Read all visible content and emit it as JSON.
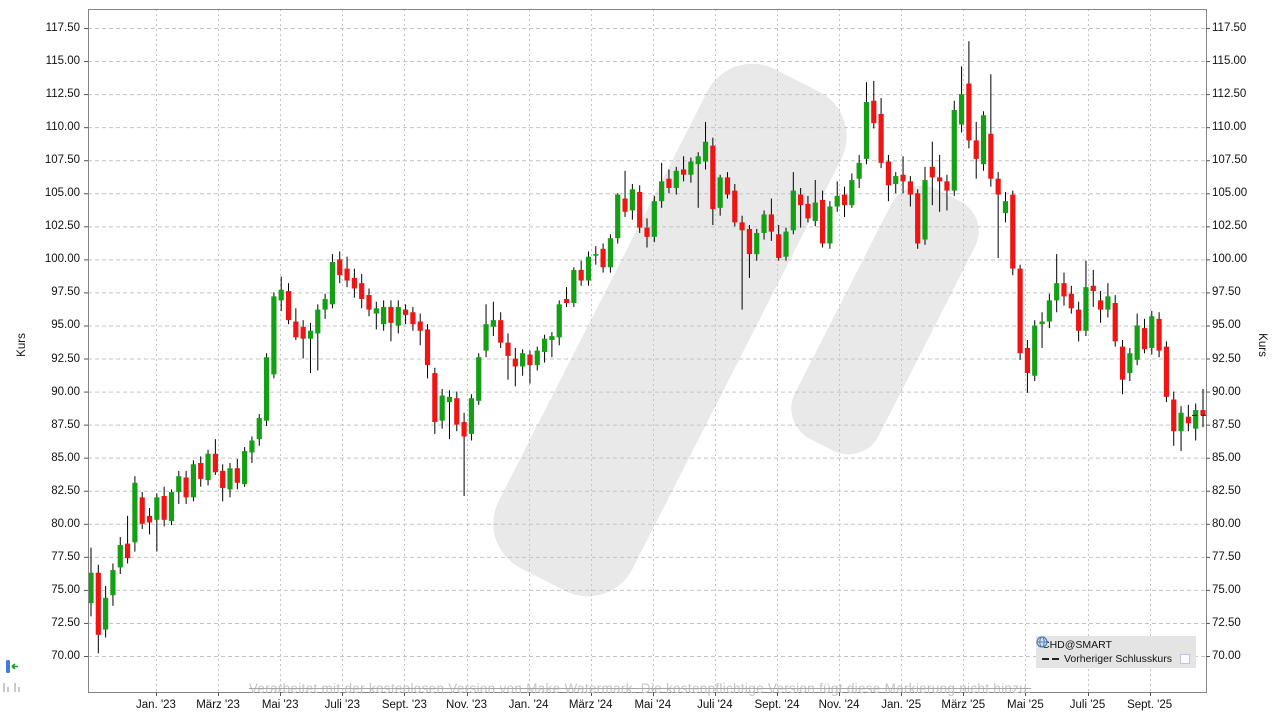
{
  "axes": {
    "y_left_title": "Kurs",
    "y_right_title": "Kurs",
    "y_ticks": [
      70.0,
      72.5,
      75.0,
      77.5,
      80.0,
      82.5,
      85.0,
      87.5,
      90.0,
      92.5,
      95.0,
      97.5,
      100.0,
      102.5,
      105.0,
      107.5,
      110.0,
      112.5,
      115.0,
      117.5
    ],
    "x_tick_labels": [
      "Jan. '23",
      "März '23",
      "Mai '23",
      "Juli '23",
      "Sept. '23",
      "Nov. '23",
      "Jan. '24",
      "März '24",
      "Mai '24",
      "Juli '24",
      "Sept. '24",
      "Nov. '24",
      "Jan. '25",
      "März '25",
      "Mai '25",
      "Juli '25",
      "Sept. '25"
    ]
  },
  "legend": {
    "title": "CHD@SMART",
    "title_icon": "globe-icon",
    "items": [
      {
        "label": "Vorheriger Schlusskurs",
        "marker": "dashed-line"
      }
    ]
  },
  "watermark": {
    "text": "Verarbeitet mit der kostenlosen Version von Make Watermark. Die kostenpflichtige Version fügt diese Markierung nicht hinzu.",
    "shape_color": "#e9e9e9"
  },
  "colors": {
    "up": "#14a014",
    "down": "#ef1515",
    "wick": "#000000",
    "grid": "#c4c4c4",
    "frame": "#858585"
  },
  "chart_data": {
    "type": "candlestick",
    "series_name": "CHD@SMART",
    "interval": "weekly",
    "x_range": [
      "Nov. '22",
      "Okt. '25"
    ],
    "xlabel": "",
    "ylabel": "Kurs",
    "ylim": [
      67.3,
      118.9
    ],
    "grid": true,
    "legend_position": "bottom-right",
    "ohlc_columns": [
      "open",
      "high",
      "low",
      "close"
    ],
    "ohlc": [
      [
        74.0,
        78.2,
        73.0,
        76.3
      ],
      [
        76.3,
        76.9,
        70.2,
        71.6
      ],
      [
        72.0,
        75.3,
        71.4,
        74.4
      ],
      [
        74.6,
        77.0,
        73.8,
        76.5
      ],
      [
        76.7,
        79.0,
        76.2,
        78.4
      ],
      [
        78.5,
        80.6,
        77.0,
        77.4
      ],
      [
        78.6,
        83.6,
        77.9,
        83.1
      ],
      [
        82.0,
        82.4,
        79.6,
        80.0
      ],
      [
        80.6,
        81.2,
        79.2,
        80.1
      ],
      [
        80.3,
        82.3,
        77.9,
        82.0
      ],
      [
        82.1,
        82.8,
        79.8,
        80.3
      ],
      [
        80.2,
        82.6,
        79.9,
        82.4
      ],
      [
        82.4,
        84.0,
        81.5,
        83.6
      ],
      [
        83.5,
        84.0,
        81.5,
        82.0
      ],
      [
        82.0,
        84.8,
        81.7,
        84.5
      ],
      [
        84.6,
        85.1,
        82.8,
        83.4
      ],
      [
        83.3,
        85.6,
        82.9,
        85.3
      ],
      [
        85.3,
        86.4,
        83.7,
        83.9
      ],
      [
        84.0,
        84.5,
        81.7,
        82.7
      ],
      [
        82.6,
        84.6,
        82.0,
        84.2
      ],
      [
        84.2,
        84.9,
        82.6,
        83.1
      ],
      [
        83.0,
        85.8,
        82.8,
        85.5
      ],
      [
        85.4,
        86.6,
        84.6,
        86.3
      ],
      [
        86.4,
        88.3,
        85.9,
        88.0
      ],
      [
        87.8,
        92.9,
        87.4,
        92.6
      ],
      [
        91.3,
        97.5,
        91.0,
        97.2
      ],
      [
        96.9,
        98.7,
        96.1,
        97.7
      ],
      [
        97.6,
        98.2,
        95.1,
        95.4
      ],
      [
        95.3,
        96.3,
        93.9,
        94.1
      ],
      [
        94.9,
        95.4,
        92.5,
        94.0
      ],
      [
        94.0,
        95.2,
        91.4,
        94.6
      ],
      [
        94.4,
        96.6,
        91.6,
        96.2
      ],
      [
        96.2,
        97.4,
        95.5,
        97.0
      ],
      [
        96.6,
        100.4,
        96.3,
        99.8
      ],
      [
        100.0,
        100.6,
        98.2,
        98.8
      ],
      [
        99.3,
        100.2,
        97.9,
        98.4
      ],
      [
        98.6,
        99.3,
        97.1,
        97.8
      ],
      [
        98.2,
        98.9,
        96.3,
        97.0
      ],
      [
        97.3,
        97.8,
        95.7,
        96.2
      ],
      [
        95.9,
        96.8,
        94.7,
        96.3
      ],
      [
        95.1,
        96.9,
        94.6,
        96.4
      ],
      [
        96.4,
        96.9,
        93.8,
        95.2
      ],
      [
        95.0,
        96.9,
        94.4,
        96.4
      ],
      [
        96.2,
        96.6,
        95.1,
        95.8
      ],
      [
        96.0,
        96.4,
        94.6,
        95.1
      ],
      [
        95.3,
        95.9,
        93.5,
        94.6
      ],
      [
        94.7,
        95.1,
        91.0,
        92.0
      ],
      [
        91.4,
        91.8,
        86.8,
        87.7
      ],
      [
        87.8,
        90.2,
        87.2,
        89.7
      ],
      [
        89.2,
        90.1,
        86.4,
        89.6
      ],
      [
        89.5,
        90.0,
        87.0,
        87.5
      ],
      [
        87.7,
        88.4,
        82.1,
        86.6
      ],
      [
        86.8,
        89.8,
        86.3,
        89.5
      ],
      [
        89.3,
        92.9,
        89.0,
        92.6
      ],
      [
        93.1,
        96.6,
        92.6,
        95.1
      ],
      [
        94.9,
        96.8,
        94.2,
        95.4
      ],
      [
        95.4,
        96.0,
        93.3,
        93.7
      ],
      [
        93.7,
        94.4,
        90.9,
        92.7
      ],
      [
        92.5,
        93.3,
        90.4,
        91.9
      ],
      [
        91.9,
        93.2,
        91.2,
        92.9
      ],
      [
        92.8,
        93.1,
        90.6,
        92.0
      ],
      [
        92.0,
        93.4,
        91.6,
        93.1
      ],
      [
        93.0,
        94.3,
        92.2,
        94.0
      ],
      [
        93.9,
        94.5,
        92.6,
        94.2
      ],
      [
        94.1,
        96.9,
        93.5,
        96.6
      ],
      [
        97.0,
        97.9,
        96.4,
        96.7
      ],
      [
        96.7,
        99.4,
        96.4,
        99.2
      ],
      [
        99.2,
        99.9,
        98.0,
        98.4
      ],
      [
        98.4,
        100.6,
        98.0,
        100.2
      ],
      [
        100.3,
        101.0,
        99.6,
        100.4
      ],
      [
        100.8,
        101.2,
        99.0,
        99.4
      ],
      [
        99.4,
        101.9,
        99.0,
        101.6
      ],
      [
        101.6,
        105.0,
        101.2,
        104.9
      ],
      [
        104.6,
        106.7,
        103.2,
        103.6
      ],
      [
        103.7,
        105.7,
        103.0,
        105.3
      ],
      [
        105.1,
        105.6,
        102.0,
        102.4
      ],
      [
        102.4,
        103.1,
        100.9,
        101.7
      ],
      [
        101.7,
        104.8,
        101.3,
        104.4
      ],
      [
        104.4,
        107.3,
        103.9,
        105.9
      ],
      [
        106.1,
        106.8,
        105.0,
        105.4
      ],
      [
        105.4,
        107.0,
        104.9,
        106.7
      ],
      [
        106.8,
        107.8,
        105.9,
        106.4
      ],
      [
        106.4,
        107.7,
        105.8,
        107.4
      ],
      [
        107.2,
        108.1,
        103.9,
        107.8
      ],
      [
        107.4,
        110.4,
        106.8,
        108.9
      ],
      [
        108.6,
        109.2,
        102.6,
        103.8
      ],
      [
        103.9,
        106.4,
        103.3,
        106.2
      ],
      [
        106.2,
        106.6,
        104.6,
        104.9
      ],
      [
        105.2,
        105.7,
        102.5,
        102.8
      ],
      [
        102.8,
        103.3,
        96.2,
        102.2
      ],
      [
        102.3,
        102.6,
        98.6,
        100.4
      ],
      [
        100.4,
        102.3,
        99.9,
        102.0
      ],
      [
        102.0,
        103.7,
        101.5,
        103.4
      ],
      [
        103.4,
        104.6,
        101.4,
        102.1
      ],
      [
        101.9,
        102.6,
        99.9,
        100.1
      ],
      [
        100.2,
        102.4,
        99.9,
        102.1
      ],
      [
        102.2,
        106.6,
        101.9,
        105.2
      ],
      [
        104.9,
        105.4,
        102.4,
        104.1
      ],
      [
        104.2,
        104.8,
        102.8,
        103.1
      ],
      [
        102.9,
        106.0,
        102.5,
        104.3
      ],
      [
        104.5,
        105.2,
        100.9,
        101.2
      ],
      [
        101.2,
        104.4,
        100.8,
        104.0
      ],
      [
        104.0,
        105.9,
        103.6,
        104.8
      ],
      [
        104.9,
        105.5,
        103.2,
        104.1
      ],
      [
        104.1,
        106.5,
        103.9,
        106.0
      ],
      [
        106.1,
        107.9,
        105.4,
        107.3
      ],
      [
        107.6,
        113.4,
        107.2,
        111.9
      ],
      [
        112.0,
        113.5,
        109.9,
        110.3
      ],
      [
        111.0,
        112.2,
        106.9,
        107.3
      ],
      [
        107.4,
        107.9,
        104.4,
        105.6
      ],
      [
        105.7,
        106.6,
        105.0,
        106.3
      ],
      [
        106.4,
        107.8,
        105.0,
        105.9
      ],
      [
        105.9,
        106.3,
        104.0,
        104.9
      ],
      [
        105.0,
        105.3,
        100.8,
        101.2
      ],
      [
        101.5,
        107.0,
        101.1,
        106.0
      ],
      [
        107.0,
        108.9,
        104.1,
        106.2
      ],
      [
        106.2,
        107.9,
        103.6,
        105.9
      ],
      [
        105.9,
        106.4,
        103.7,
        105.2
      ],
      [
        105.2,
        112.0,
        104.8,
        111.3
      ],
      [
        110.2,
        114.6,
        109.6,
        112.5
      ],
      [
        113.3,
        116.5,
        108.4,
        109.0
      ],
      [
        109.0,
        110.4,
        106.1,
        107.6
      ],
      [
        107.2,
        111.2,
        106.7,
        110.9
      ],
      [
        109.5,
        114.0,
        105.5,
        106.1
      ],
      [
        106.1,
        106.6,
        100.1,
        104.9
      ],
      [
        103.5,
        105.1,
        102.8,
        104.4
      ],
      [
        104.9,
        105.2,
        98.8,
        99.3
      ],
      [
        99.3,
        99.6,
        92.4,
        92.9
      ],
      [
        93.3,
        93.9,
        89.9,
        91.4
      ],
      [
        91.2,
        95.4,
        90.8,
        95.0
      ],
      [
        95.1,
        96.0,
        93.3,
        95.3
      ],
      [
        95.3,
        97.4,
        94.8,
        96.9
      ],
      [
        96.9,
        100.4,
        96.0,
        98.2
      ],
      [
        98.2,
        99.0,
        96.5,
        97.2
      ],
      [
        97.4,
        98.0,
        95.9,
        96.3
      ],
      [
        96.2,
        96.8,
        93.8,
        94.6
      ],
      [
        94.6,
        99.9,
        94.2,
        97.9
      ],
      [
        98.0,
        99.2,
        96.4,
        97.6
      ],
      [
        96.9,
        97.6,
        95.2,
        96.2
      ],
      [
        96.2,
        98.2,
        95.6,
        97.2
      ],
      [
        96.7,
        97.3,
        93.4,
        93.8
      ],
      [
        93.4,
        93.9,
        89.8,
        90.9
      ],
      [
        91.4,
        93.3,
        90.8,
        92.9
      ],
      [
        92.4,
        95.9,
        92.0,
        95.0
      ],
      [
        94.8,
        95.5,
        92.9,
        93.2
      ],
      [
        93.3,
        96.1,
        92.8,
        95.7
      ],
      [
        95.5,
        96.0,
        92.6,
        93.1
      ],
      [
        93.4,
        93.8,
        89.2,
        89.6
      ],
      [
        89.4,
        90.0,
        85.9,
        87.0
      ],
      [
        87.0,
        88.9,
        85.5,
        88.4
      ],
      [
        88.1,
        89.0,
        87.0,
        87.6
      ],
      [
        87.2,
        89.1,
        86.3,
        88.6
      ],
      [
        88.6,
        90.2,
        87.3,
        88.2
      ]
    ]
  }
}
